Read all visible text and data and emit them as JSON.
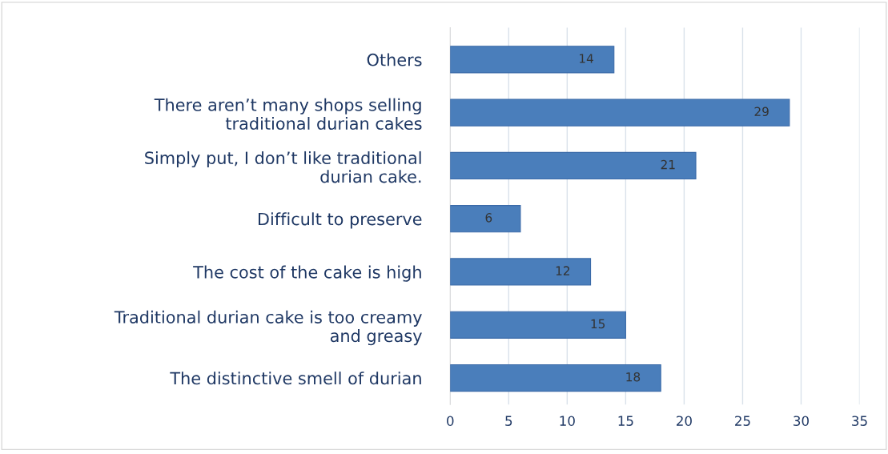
{
  "chart_data": {
    "type": "bar",
    "orientation": "horizontal",
    "categories": [
      "Others",
      "There aren’t many shops selling\ntraditional durian cakes",
      "Simply put, I don’t like traditional\ndurian cake.",
      "Difficult to preserve",
      "The cost of the cake is high",
      "Traditional durian cake is too creamy\nand greasy",
      "The distinctive smell of durian"
    ],
    "values": [
      14,
      29,
      21,
      6,
      12,
      15,
      18
    ],
    "color": "#4a7ebb",
    "xlim": [
      0,
      35
    ],
    "xticks": [
      0,
      5,
      10,
      15,
      20,
      25,
      30,
      35
    ],
    "grid": "x",
    "data_labels": true,
    "legend": false
  }
}
